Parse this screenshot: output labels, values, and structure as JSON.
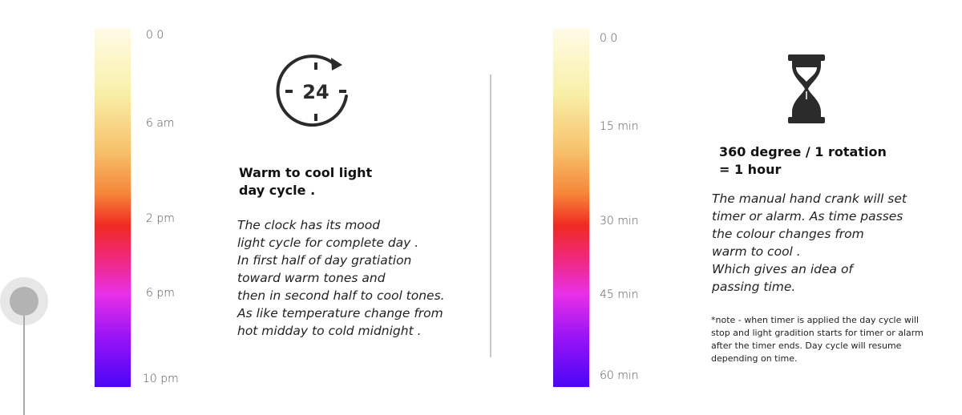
{
  "day_cycle": {
    "ticks": [
      "0 0",
      "6 am",
      "2 pm",
      "6 pm",
      "10 pm"
    ],
    "icon_number": "24",
    "heading": [
      "Warm to cool light",
      "day cycle ."
    ],
    "description": [
      "The clock has its mood",
      "light cycle for complete day .",
      "In first half of day  gratiation",
      "toward warm tones and",
      "then in second half to cool tones.",
      "As like temperature change from",
      "hot midday to cold midnight ."
    ]
  },
  "timer": {
    "ticks": [
      "0 0",
      "15 min",
      "30 min",
      "45 min",
      "60 min"
    ],
    "heading": [
      "360  degree / 1 rotation",
      "= 1 hour"
    ],
    "description": [
      "The manual hand crank will set",
      "timer or alarm. As time passes",
      "the colour changes from",
      "warm to cool .",
      "Which gives an idea of",
      "passing time."
    ],
    "note": "*note - when timer is applied the day cycle will stop and light gradition starts for timer or alarm after the timer ends. Day cycle will resume depending on time."
  },
  "colors": {
    "gradient_top": "#fffbe6",
    "gradient_mid": "#ef2a22",
    "gradient_bottom": "#4a06f6",
    "icon": "#2b2b2b"
  }
}
